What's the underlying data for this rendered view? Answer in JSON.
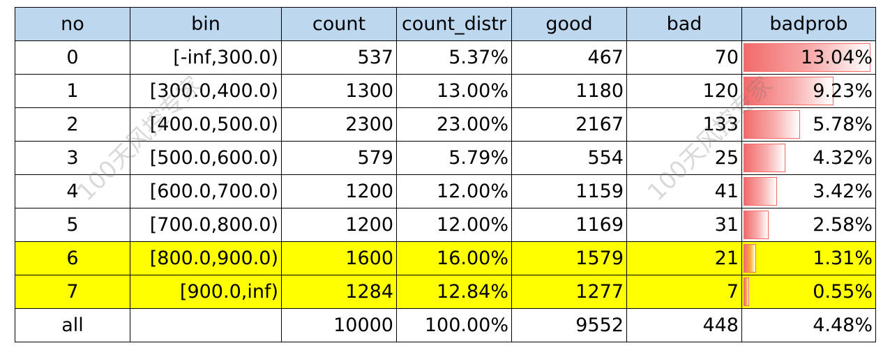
{
  "columns": [
    "no",
    "bin",
    "count",
    "count_distr",
    "good",
    "bad",
    "badprob"
  ],
  "rows": [
    {
      "no": "0",
      "bin": "[-inf,300.0)",
      "count": "537",
      "count_distr": "5.37%",
      "good": "467",
      "bad": "70",
      "badprob": "13.04%",
      "highlight": false
    },
    {
      "no": "1",
      "bin": "[300.0,400.0)",
      "count": "1300",
      "count_distr": "13.00%",
      "good": "1180",
      "bad": "120",
      "badprob": "9.23%",
      "highlight": false
    },
    {
      "no": "2",
      "bin": "[400.0,500.0)",
      "count": "2300",
      "count_distr": "23.00%",
      "good": "2167",
      "bad": "133",
      "badprob": "5.78%",
      "highlight": false
    },
    {
      "no": "3",
      "bin": "[500.0,600.0)",
      "count": "579",
      "count_distr": "5.79%",
      "good": "554",
      "bad": "25",
      "badprob": "4.32%",
      "highlight": false
    },
    {
      "no": "4",
      "bin": "[600.0,700.0)",
      "count": "1200",
      "count_distr": "12.00%",
      "good": "1159",
      "bad": "41",
      "badprob": "3.42%",
      "highlight": false
    },
    {
      "no": "5",
      "bin": "[700.0,800.0)",
      "count": "1200",
      "count_distr": "12.00%",
      "good": "1169",
      "bad": "31",
      "badprob": "2.58%",
      "highlight": false
    },
    {
      "no": "6",
      "bin": "[800.0,900.0)",
      "count": "1600",
      "count_distr": "16.00%",
      "good": "1579",
      "bad": "21",
      "badprob": "1.31%",
      "highlight": true
    },
    {
      "no": "7",
      "bin": "[900.0,inf)",
      "count": "1284",
      "count_distr": "12.84%",
      "good": "1277",
      "bad": "7",
      "badprob": "0.55%",
      "highlight": true
    },
    {
      "no": "all",
      "bin": "",
      "count": "10000",
      "count_distr": "100.00%",
      "good": "9552",
      "bad": "448",
      "badprob": "4.48%",
      "highlight": false
    }
  ],
  "watermark": "100天风控专家",
  "colors": {
    "header_bg": "#bcd7ee",
    "highlight_bg": "#ffff00",
    "bar": "#f26a6a"
  },
  "chart_data": {
    "type": "table",
    "columns": [
      "no",
      "bin",
      "count",
      "count_distr",
      "good",
      "bad",
      "badprob"
    ],
    "data_bar_column": "badprob",
    "data_bar_values": [
      13.04,
      9.23,
      5.78,
      4.32,
      3.42,
      2.58,
      1.31,
      0.55
    ],
    "highlighted_rows": [
      "6",
      "7"
    ]
  }
}
